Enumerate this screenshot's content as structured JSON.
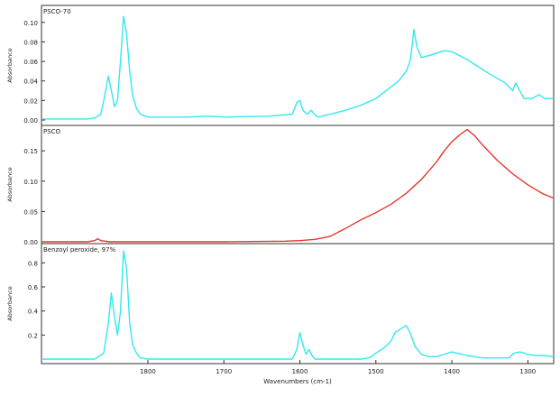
{
  "chart_data": [
    {
      "type": "line",
      "title": "PSCO-70",
      "ylabel": "Absorbance",
      "ylim": [
        0.0,
        0.11
      ],
      "yticks": [
        0.0,
        0.02,
        0.04,
        0.06,
        0.08,
        0.1
      ],
      "xlim": [
        1940,
        1266
      ],
      "grid": false,
      "series": [
        {
          "color": "#33e8f0",
          "x": [
            1940,
            1900,
            1880,
            1870,
            1862,
            1858,
            1852,
            1848,
            1844,
            1840,
            1836,
            1832,
            1828,
            1824,
            1820,
            1815,
            1810,
            1800,
            1780,
            1750,
            1720,
            1700,
            1640,
            1610,
            1604,
            1600,
            1596,
            1592,
            1590,
            1585,
            1580,
            1575,
            1570,
            1560,
            1540,
            1520,
            1500,
            1480,
            1470,
            1460,
            1455,
            1452,
            1450,
            1446,
            1440,
            1430,
            1410,
            1400,
            1380,
            1350,
            1330,
            1320,
            1316,
            1312,
            1305,
            1295,
            1285,
            1278,
            1266
          ],
          "y": [
            0.001,
            0.001,
            0.001,
            0.002,
            0.006,
            0.02,
            0.045,
            0.03,
            0.014,
            0.02,
            0.06,
            0.106,
            0.088,
            0.05,
            0.025,
            0.012,
            0.006,
            0.003,
            0.003,
            0.003,
            0.004,
            0.003,
            0.004,
            0.006,
            0.018,
            0.02,
            0.01,
            0.007,
            0.006,
            0.01,
            0.005,
            0.003,
            0.004,
            0.006,
            0.01,
            0.015,
            0.022,
            0.034,
            0.04,
            0.05,
            0.06,
            0.078,
            0.093,
            0.075,
            0.064,
            0.066,
            0.071,
            0.07,
            0.062,
            0.047,
            0.038,
            0.03,
            0.038,
            0.032,
            0.022,
            0.022,
            0.026,
            0.022,
            0.022
          ]
        }
      ]
    },
    {
      "type": "line",
      "title": "PSCO",
      "ylabel": "Absorbance",
      "ylim": [
        0.0,
        0.18
      ],
      "yticks": [
        0.0,
        0.05,
        0.1,
        0.15
      ],
      "xlim": [
        1940,
        1266
      ],
      "grid": false,
      "series": [
        {
          "color": "#e23a2e",
          "x": [
            1940,
            1880,
            1870,
            1866,
            1862,
            1850,
            1800,
            1700,
            1620,
            1600,
            1580,
            1560,
            1540,
            1520,
            1500,
            1480,
            1460,
            1440,
            1420,
            1410,
            1400,
            1390,
            1380,
            1370,
            1360,
            1340,
            1320,
            1300,
            1280,
            1266
          ],
          "y": [
            0.0,
            0.0,
            0.002,
            0.005,
            0.002,
            0.0,
            0.0,
            0.0,
            0.001,
            0.002,
            0.004,
            0.009,
            0.022,
            0.036,
            0.048,
            0.062,
            0.08,
            0.103,
            0.132,
            0.15,
            0.165,
            0.176,
            0.185,
            0.175,
            0.16,
            0.134,
            0.112,
            0.094,
            0.079,
            0.072
          ]
        }
      ]
    },
    {
      "type": "line",
      "title": "Benzoyl peroxide, 97%",
      "ylabel": "Absorbance",
      "xlabel": "Wavenumbers (cm-1)",
      "ylim": [
        0.0,
        0.9
      ],
      "yticks": [
        0.2,
        0.4,
        0.6,
        0.8
      ],
      "xlim": [
        1940,
        1266
      ],
      "xticks": [
        1800,
        1700,
        1600,
        1500,
        1400,
        1300
      ],
      "grid": false,
      "series": [
        {
          "color": "#33e8f0",
          "x": [
            1940,
            1870,
            1858,
            1852,
            1848,
            1844,
            1840,
            1836,
            1832,
            1828,
            1824,
            1820,
            1815,
            1810,
            1800,
            1780,
            1720,
            1660,
            1610,
            1604,
            1600,
            1596,
            1592,
            1588,
            1584,
            1580,
            1560,
            1540,
            1520,
            1510,
            1506,
            1500,
            1490,
            1480,
            1475,
            1460,
            1455,
            1448,
            1440,
            1430,
            1420,
            1400,
            1380,
            1360,
            1340,
            1325,
            1318,
            1310,
            1300,
            1290,
            1280,
            1266
          ],
          "y": [
            0.0,
            0.0,
            0.05,
            0.3,
            0.55,
            0.35,
            0.2,
            0.4,
            0.9,
            0.75,
            0.3,
            0.12,
            0.05,
            0.01,
            0.0,
            0.0,
            0.0,
            0.0,
            0.0,
            0.08,
            0.22,
            0.12,
            0.04,
            0.08,
            0.03,
            0.0,
            0.0,
            0.0,
            0.0,
            0.01,
            0.02,
            0.05,
            0.09,
            0.15,
            0.22,
            0.28,
            0.22,
            0.1,
            0.04,
            0.02,
            0.02,
            0.06,
            0.03,
            0.01,
            0.01,
            0.01,
            0.05,
            0.06,
            0.04,
            0.03,
            0.03,
            0.02
          ]
        }
      ]
    }
  ]
}
